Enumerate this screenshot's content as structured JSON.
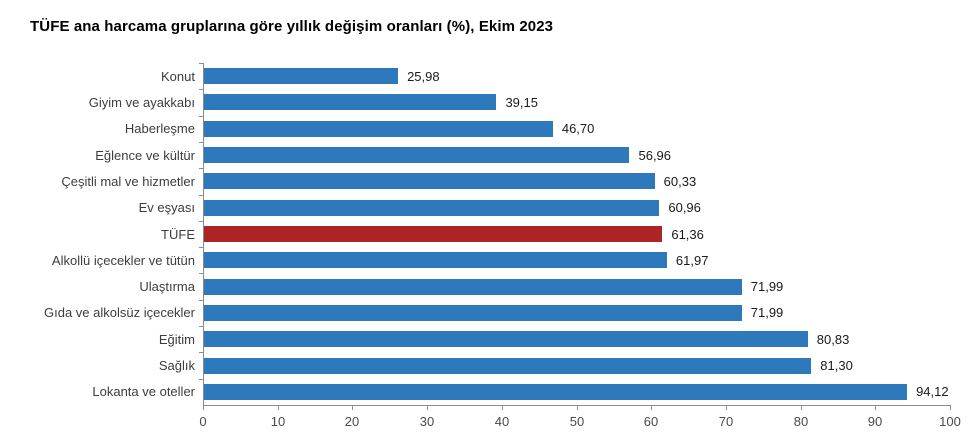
{
  "title": "TÜFE ana harcama gruplarına göre yıllık değişim oranları (%), Ekim 2023",
  "colors": {
    "bar": "#2e79bb",
    "highlight_bar": "#ad2424",
    "axis": "#8c8c8c",
    "category_label": "#3d3d3d",
    "value_label": "#1a1a1a",
    "background": "#ffffff"
  },
  "chart_data": {
    "type": "bar",
    "orientation": "horizontal",
    "title": "TÜFE ana harcama gruplarına göre yıllık değişim oranları (%), Ekim 2023",
    "categories": [
      "Konut",
      "Giyim ve ayakkabı",
      "Haberleşme",
      "Eğlence ve kültür",
      "Çeşitli mal ve hizmetler",
      "Ev eşyası",
      "TÜFE",
      "Alkollü içecekler ve tütün",
      "Ulaştırma",
      "Gıda ve alkolsüz içecekler",
      "Eğitim",
      "Sağlık",
      "Lokanta ve oteller"
    ],
    "values": [
      25.98,
      39.15,
      46.7,
      56.96,
      60.33,
      60.96,
      61.36,
      61.97,
      71.99,
      71.99,
      80.83,
      81.3,
      94.12
    ],
    "value_labels": [
      "25,98",
      "39,15",
      "46,70",
      "56,96",
      "60,33",
      "60,96",
      "61,36",
      "61,97",
      "71,99",
      "71,99",
      "80,83",
      "81,30",
      "94,12"
    ],
    "highlight_category": "TÜFE",
    "highlight_index": 6,
    "xlabel": "",
    "ylabel": "",
    "xlim": [
      0,
      100
    ],
    "x_ticks": [
      0,
      10,
      20,
      30,
      40,
      50,
      60,
      70,
      80,
      90,
      100
    ],
    "grid": false,
    "legend": false
  }
}
